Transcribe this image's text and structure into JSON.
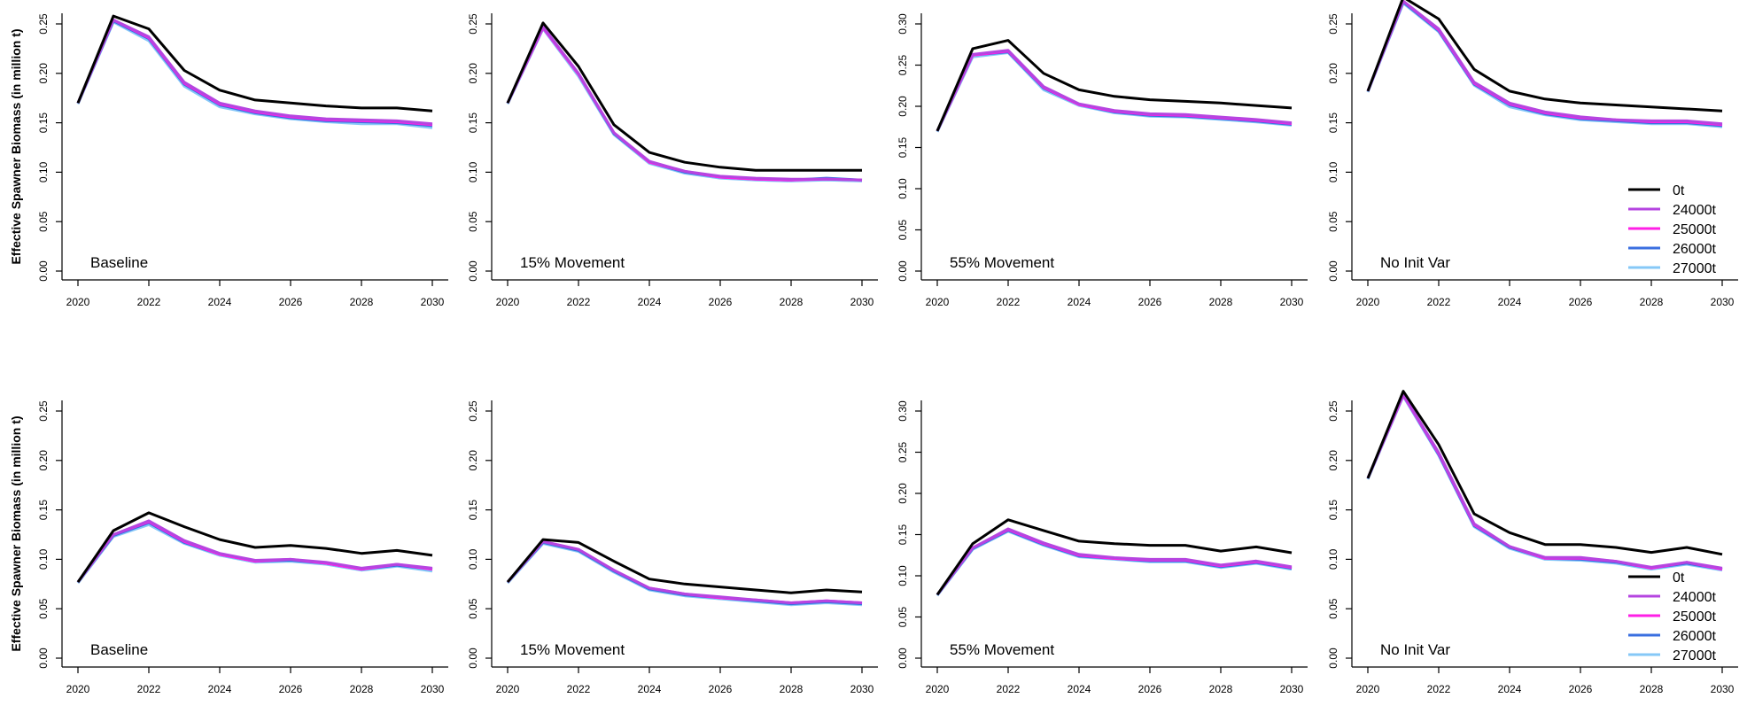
{
  "ylabel": "Effective Spawner Biomass (in million t)",
  "legend": {
    "position": "bottom-right",
    "entries": [
      {
        "label": "0t",
        "color": "#000000"
      },
      {
        "label": "24000t",
        "color": "#b545e0"
      },
      {
        "label": "25000t",
        "color": "#ff1fe6"
      },
      {
        "label": "26000t",
        "color": "#3a6fe0"
      },
      {
        "label": "27000t",
        "color": "#86c8f7"
      }
    ]
  },
  "chart_data": [
    {
      "type": "line",
      "panel_label": "Baseline",
      "ylabel": "Effective Spawner Biomass (in million t)",
      "xlim": [
        2020,
        2030
      ],
      "ylim": [
        0,
        0.25
      ],
      "x_ticks": [
        2020,
        2022,
        2024,
        2026,
        2028,
        2030
      ],
      "y_ticks": [
        "0.00",
        "0.05",
        "0.10",
        "0.15",
        "0.20",
        "0.25"
      ],
      "x": [
        2020,
        2021,
        2022,
        2023,
        2024,
        2025,
        2026,
        2027,
        2028,
        2029,
        2030
      ],
      "series": [
        {
          "name": "0t",
          "color": "#000000",
          "values": [
            0.17,
            0.258,
            0.245,
            0.203,
            0.183,
            0.173,
            0.17,
            0.167,
            0.165,
            0.165,
            0.162
          ]
        },
        {
          "name": "24000t",
          "color": "#b545e0",
          "values": [
            0.17,
            0.254,
            0.237,
            0.191,
            0.17,
            0.162,
            0.157,
            0.154,
            0.153,
            0.152,
            0.149
          ]
        },
        {
          "name": "25000t",
          "color": "#ff1fe6",
          "values": [
            0.17,
            0.254,
            0.236,
            0.19,
            0.169,
            0.161,
            0.156,
            0.153,
            0.152,
            0.151,
            0.148
          ]
        },
        {
          "name": "26000t",
          "color": "#3a6fe0",
          "values": [
            0.17,
            0.253,
            0.235,
            0.189,
            0.168,
            0.16,
            0.155,
            0.152,
            0.151,
            0.15,
            0.147
          ]
        },
        {
          "name": "27000t",
          "color": "#86c8f7",
          "values": [
            0.169,
            0.252,
            0.233,
            0.187,
            0.166,
            0.159,
            0.154,
            0.151,
            0.149,
            0.149,
            0.145
          ]
        }
      ]
    },
    {
      "type": "line",
      "panel_label": "15% Movement",
      "xlim": [
        2020,
        2030
      ],
      "ylim": [
        0,
        0.25
      ],
      "x_ticks": [
        2020,
        2022,
        2024,
        2026,
        2028,
        2030
      ],
      "y_ticks": [
        "0.00",
        "0.05",
        "0.10",
        "0.15",
        "0.20",
        "0.25"
      ],
      "x": [
        2020,
        2021,
        2022,
        2023,
        2024,
        2025,
        2026,
        2027,
        2028,
        2029,
        2030
      ],
      "series": [
        {
          "name": "0t",
          "color": "#000000",
          "values": [
            0.17,
            0.251,
            0.207,
            0.148,
            0.12,
            0.11,
            0.105,
            0.102,
            0.102,
            0.102,
            0.102
          ]
        },
        {
          "name": "24000t",
          "color": "#b545e0",
          "values": [
            0.17,
            0.247,
            0.2,
            0.14,
            0.111,
            0.101,
            0.096,
            0.094,
            0.093,
            0.093,
            0.092
          ]
        },
        {
          "name": "25000t",
          "color": "#ff1fe6",
          "values": [
            0.17,
            0.246,
            0.199,
            0.14,
            0.11,
            0.101,
            0.095,
            0.093,
            0.092,
            0.093,
            0.092
          ]
        },
        {
          "name": "26000t",
          "color": "#3a6fe0",
          "values": [
            0.17,
            0.246,
            0.199,
            0.139,
            0.11,
            0.1,
            0.095,
            0.093,
            0.092,
            0.094,
            0.092
          ]
        },
        {
          "name": "27000t",
          "color": "#86c8f7",
          "values": [
            0.169,
            0.245,
            0.197,
            0.138,
            0.109,
            0.099,
            0.094,
            0.092,
            0.091,
            0.092,
            0.091
          ]
        }
      ]
    },
    {
      "type": "line",
      "panel_label": "55% Movement",
      "xlim": [
        2020,
        2030
      ],
      "ylim": [
        0,
        0.3
      ],
      "x_ticks": [
        2020,
        2022,
        2024,
        2026,
        2028,
        2030
      ],
      "y_ticks": [
        "0.00",
        "0.05",
        "0.10",
        "0.15",
        "0.20",
        "0.25",
        "0.30"
      ],
      "x": [
        2020,
        2021,
        2022,
        2023,
        2024,
        2025,
        2026,
        2027,
        2028,
        2029,
        2030
      ],
      "series": [
        {
          "name": "0t",
          "color": "#000000",
          "values": [
            0.17,
            0.27,
            0.28,
            0.24,
            0.22,
            0.212,
            0.208,
            0.206,
            0.204,
            0.201,
            0.198
          ]
        },
        {
          "name": "24000t",
          "color": "#b545e0",
          "values": [
            0.17,
            0.263,
            0.268,
            0.224,
            0.203,
            0.195,
            0.191,
            0.19,
            0.187,
            0.184,
            0.18
          ]
        },
        {
          "name": "25000t",
          "color": "#ff1fe6",
          "values": [
            0.17,
            0.262,
            0.267,
            0.223,
            0.202,
            0.194,
            0.19,
            0.189,
            0.186,
            0.183,
            0.179
          ]
        },
        {
          "name": "26000t",
          "color": "#3a6fe0",
          "values": [
            0.17,
            0.262,
            0.266,
            0.222,
            0.202,
            0.193,
            0.189,
            0.188,
            0.185,
            0.182,
            0.178
          ]
        },
        {
          "name": "27000t",
          "color": "#86c8f7",
          "values": [
            0.169,
            0.26,
            0.265,
            0.22,
            0.201,
            0.192,
            0.188,
            0.187,
            0.184,
            0.181,
            0.177
          ]
        }
      ]
    },
    {
      "type": "line",
      "panel_label": "No Init Var",
      "xlim": [
        2020,
        2030
      ],
      "ylim": [
        0,
        0.25
      ],
      "x_ticks": [
        2020,
        2022,
        2024,
        2026,
        2028,
        2030
      ],
      "y_ticks": [
        "0.00",
        "0.05",
        "0.10",
        "0.15",
        "0.20",
        "0.25"
      ],
      "x": [
        2020,
        2021,
        2022,
        2023,
        2024,
        2025,
        2026,
        2027,
        2028,
        2029,
        2030
      ],
      "show_legend": true,
      "series": [
        {
          "name": "0t",
          "color": "#000000",
          "values": [
            0.182,
            0.277,
            0.255,
            0.204,
            0.182,
            0.174,
            0.17,
            0.168,
            0.166,
            0.164,
            0.162
          ]
        },
        {
          "name": "24000t",
          "color": "#b545e0",
          "values": [
            0.182,
            0.273,
            0.245,
            0.191,
            0.17,
            0.161,
            0.156,
            0.153,
            0.152,
            0.152,
            0.149
          ]
        },
        {
          "name": "25000t",
          "color": "#ff1fe6",
          "values": [
            0.182,
            0.273,
            0.244,
            0.19,
            0.169,
            0.16,
            0.155,
            0.153,
            0.151,
            0.151,
            0.148
          ]
        },
        {
          "name": "26000t",
          "color": "#3a6fe0",
          "values": [
            0.182,
            0.272,
            0.243,
            0.189,
            0.168,
            0.159,
            0.154,
            0.152,
            0.15,
            0.15,
            0.147
          ]
        },
        {
          "name": "27000t",
          "color": "#86c8f7",
          "values": [
            0.181,
            0.271,
            0.242,
            0.188,
            0.166,
            0.158,
            0.153,
            0.151,
            0.149,
            0.149,
            0.146
          ]
        }
      ]
    },
    {
      "type": "line",
      "panel_label": "Baseline",
      "ylabel": "Effective Spawner Biomass (in million t)",
      "xlim": [
        2020,
        2030
      ],
      "ylim": [
        0,
        0.25
      ],
      "x_ticks": [
        2020,
        2022,
        2024,
        2026,
        2028,
        2030
      ],
      "y_ticks": [
        "0.00",
        "0.05",
        "0.10",
        "0.15",
        "0.20",
        "0.25"
      ],
      "x": [
        2020,
        2021,
        2022,
        2023,
        2024,
        2025,
        2026,
        2027,
        2028,
        2029,
        2030
      ],
      "series": [
        {
          "name": "0t",
          "color": "#000000",
          "values": [
            0.077,
            0.129,
            0.147,
            0.133,
            0.12,
            0.112,
            0.114,
            0.111,
            0.106,
            0.109,
            0.104
          ]
        },
        {
          "name": "24000t",
          "color": "#b545e0",
          "values": [
            0.077,
            0.125,
            0.139,
            0.119,
            0.106,
            0.099,
            0.1,
            0.097,
            0.091,
            0.095,
            0.091
          ]
        },
        {
          "name": "25000t",
          "color": "#ff1fe6",
          "values": [
            0.077,
            0.125,
            0.138,
            0.118,
            0.105,
            0.098,
            0.1,
            0.096,
            0.09,
            0.095,
            0.09
          ]
        },
        {
          "name": "26000t",
          "color": "#3a6fe0",
          "values": [
            0.077,
            0.124,
            0.137,
            0.117,
            0.105,
            0.098,
            0.099,
            0.096,
            0.09,
            0.094,
            0.09
          ]
        },
        {
          "name": "27000t",
          "color": "#86c8f7",
          "values": [
            0.076,
            0.123,
            0.135,
            0.116,
            0.104,
            0.097,
            0.098,
            0.095,
            0.089,
            0.093,
            0.088
          ]
        }
      ]
    },
    {
      "type": "line",
      "panel_label": "15% Movement",
      "xlim": [
        2020,
        2030
      ],
      "ylim": [
        0,
        0.25
      ],
      "x_ticks": [
        2020,
        2022,
        2024,
        2026,
        2028,
        2030
      ],
      "y_ticks": [
        "0.00",
        "0.05",
        "0.10",
        "0.15",
        "0.20",
        "0.25"
      ],
      "x": [
        2020,
        2021,
        2022,
        2023,
        2024,
        2025,
        2026,
        2027,
        2028,
        2029,
        2030
      ],
      "series": [
        {
          "name": "0t",
          "color": "#000000",
          "values": [
            0.077,
            0.12,
            0.117,
            0.098,
            0.08,
            0.075,
            0.072,
            0.069,
            0.066,
            0.069,
            0.067
          ]
        },
        {
          "name": "24000t",
          "color": "#b545e0",
          "values": [
            0.077,
            0.118,
            0.11,
            0.089,
            0.071,
            0.065,
            0.062,
            0.059,
            0.056,
            0.058,
            0.056
          ]
        },
        {
          "name": "25000t",
          "color": "#ff1fe6",
          "values": [
            0.077,
            0.118,
            0.11,
            0.089,
            0.071,
            0.065,
            0.061,
            0.059,
            0.056,
            0.058,
            0.056
          ]
        },
        {
          "name": "26000t",
          "color": "#3a6fe0",
          "values": [
            0.077,
            0.117,
            0.109,
            0.088,
            0.07,
            0.064,
            0.061,
            0.058,
            0.055,
            0.057,
            0.055
          ]
        },
        {
          "name": "27000t",
          "color": "#86c8f7",
          "values": [
            0.076,
            0.116,
            0.108,
            0.087,
            0.069,
            0.063,
            0.06,
            0.057,
            0.054,
            0.056,
            0.054
          ]
        }
      ]
    },
    {
      "type": "line",
      "panel_label": "55% Movement",
      "xlim": [
        2020,
        2030
      ],
      "ylim": [
        0,
        0.3
      ],
      "x_ticks": [
        2020,
        2022,
        2024,
        2026,
        2028,
        2030
      ],
      "y_ticks": [
        "0.00",
        "0.05",
        "0.10",
        "0.15",
        "0.20",
        "0.25",
        "0.30"
      ],
      "x": [
        2020,
        2021,
        2022,
        2023,
        2024,
        2025,
        2026,
        2027,
        2028,
        2029,
        2030
      ],
      "series": [
        {
          "name": "0t",
          "color": "#000000",
          "values": [
            0.077,
            0.139,
            0.168,
            0.155,
            0.142,
            0.139,
            0.137,
            0.137,
            0.13,
            0.135,
            0.128
          ]
        },
        {
          "name": "24000t",
          "color": "#b545e0",
          "values": [
            0.077,
            0.134,
            0.157,
            0.14,
            0.126,
            0.122,
            0.12,
            0.12,
            0.113,
            0.118,
            0.111
          ]
        },
        {
          "name": "25000t",
          "color": "#ff1fe6",
          "values": [
            0.077,
            0.134,
            0.156,
            0.139,
            0.125,
            0.121,
            0.119,
            0.119,
            0.112,
            0.117,
            0.11
          ]
        },
        {
          "name": "26000t",
          "color": "#3a6fe0",
          "values": [
            0.077,
            0.133,
            0.155,
            0.138,
            0.124,
            0.121,
            0.118,
            0.118,
            0.111,
            0.116,
            0.109
          ]
        },
        {
          "name": "27000t",
          "color": "#86c8f7",
          "values": [
            0.076,
            0.132,
            0.154,
            0.137,
            0.123,
            0.12,
            0.117,
            0.117,
            0.11,
            0.115,
            0.108
          ]
        }
      ]
    },
    {
      "type": "line",
      "panel_label": "No Init Var",
      "xlim": [
        2020,
        2030
      ],
      "ylim": [
        0,
        0.25
      ],
      "x_ticks": [
        2020,
        2022,
        2024,
        2026,
        2028,
        2030
      ],
      "y_ticks": [
        "0.00",
        "0.05",
        "0.10",
        "0.15",
        "0.20",
        "0.25"
      ],
      "x": [
        2020,
        2021,
        2022,
        2023,
        2024,
        2025,
        2026,
        2027,
        2028,
        2029,
        2030
      ],
      "show_legend": true,
      "series": [
        {
          "name": "0t",
          "color": "#000000",
          "values": [
            0.182,
            0.27,
            0.216,
            0.146,
            0.127,
            0.115,
            0.115,
            0.112,
            0.107,
            0.112,
            0.105
          ]
        },
        {
          "name": "24000t",
          "color": "#b545e0",
          "values": [
            0.182,
            0.267,
            0.208,
            0.136,
            0.113,
            0.102,
            0.102,
            0.098,
            0.092,
            0.097,
            0.091
          ]
        },
        {
          "name": "25000t",
          "color": "#ff1fe6",
          "values": [
            0.182,
            0.266,
            0.207,
            0.135,
            0.113,
            0.101,
            0.101,
            0.098,
            0.091,
            0.097,
            0.09
          ]
        },
        {
          "name": "26000t",
          "color": "#3a6fe0",
          "values": [
            0.182,
            0.266,
            0.206,
            0.134,
            0.112,
            0.101,
            0.1,
            0.097,
            0.091,
            0.096,
            0.09
          ]
        },
        {
          "name": "27000t",
          "color": "#86c8f7",
          "values": [
            0.181,
            0.265,
            0.205,
            0.133,
            0.111,
            0.1,
            0.099,
            0.096,
            0.09,
            0.095,
            0.089
          ]
        }
      ]
    }
  ]
}
